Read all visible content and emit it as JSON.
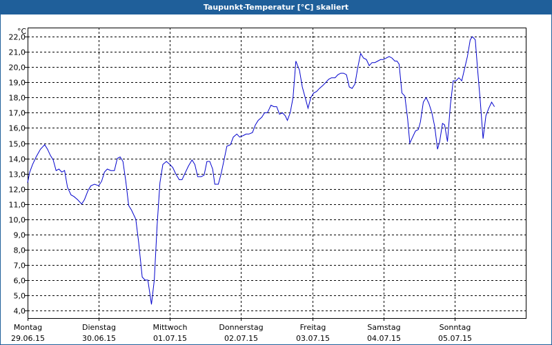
{
  "window": {
    "title": "Taupunkt-Temperatur [°C] skaliert"
  },
  "chart_data": {
    "type": "line",
    "title": "Taupunkt-Temperatur [°C] skaliert",
    "ylabel": "°C",
    "ylim": [
      3.5,
      22.6
    ],
    "yticks": [
      4,
      5,
      6,
      7,
      8,
      9,
      10,
      11,
      12,
      13,
      14,
      15,
      16,
      17,
      18,
      19,
      20,
      21,
      22
    ],
    "ytick_labels": [
      "4,0",
      "5,0",
      "6,0",
      "7,0",
      "8,0",
      "9,0",
      "10,0",
      "11,0",
      "12,0",
      "13,0",
      "14,0",
      "15,0",
      "16,0",
      "17,0",
      "18,0",
      "19,0",
      "20,0",
      "21,0",
      "22,0"
    ],
    "xlim": [
      0,
      7
    ],
    "days": [
      {
        "day": "Montag",
        "date": "29.06.15"
      },
      {
        "day": "Dienstag",
        "date": "30.06.15"
      },
      {
        "day": "Mittwoch",
        "date": "01.07.15"
      },
      {
        "day": "Donnerstag",
        "date": "02.07.15"
      },
      {
        "day": "Freitag",
        "date": "03.07.15"
      },
      {
        "day": "Samstag",
        "date": "04.07.15"
      },
      {
        "day": "Sonntag",
        "date": "05.07.15"
      }
    ],
    "grid": true,
    "line_color": "#0000cc",
    "series": [
      {
        "values": [
          [
            0.0,
            12.4
          ],
          [
            0.03,
            13.1
          ],
          [
            0.07,
            13.6
          ],
          [
            0.12,
            14.1
          ],
          [
            0.18,
            14.6
          ],
          [
            0.24,
            14.9
          ],
          [
            0.28,
            14.6
          ],
          [
            0.32,
            14.2
          ],
          [
            0.36,
            13.9
          ],
          [
            0.4,
            13.2
          ],
          [
            0.44,
            13.3
          ],
          [
            0.48,
            13.1
          ],
          [
            0.52,
            13.2
          ],
          [
            0.56,
            12.1
          ],
          [
            0.61,
            11.6
          ],
          [
            0.65,
            11.5
          ],
          [
            0.7,
            11.3
          ],
          [
            0.76,
            11.0
          ],
          [
            0.8,
            11.3
          ],
          [
            0.85,
            11.9
          ],
          [
            0.89,
            12.2
          ],
          [
            0.94,
            12.3
          ],
          [
            1.0,
            12.2
          ],
          [
            1.04,
            12.5
          ],
          [
            1.08,
            13.1
          ],
          [
            1.12,
            13.3
          ],
          [
            1.17,
            13.2
          ],
          [
            1.22,
            13.2
          ],
          [
            1.26,
            14.0
          ],
          [
            1.3,
            14.1
          ],
          [
            1.34,
            13.8
          ],
          [
            1.38,
            12.5
          ],
          [
            1.42,
            10.9
          ],
          [
            1.46,
            10.6
          ],
          [
            1.52,
            10.0
          ],
          [
            1.56,
            8.5
          ],
          [
            1.61,
            6.2
          ],
          [
            1.65,
            6.0
          ],
          [
            1.69,
            6.0
          ],
          [
            1.74,
            4.4
          ],
          [
            1.78,
            6.0
          ],
          [
            1.82,
            9.6
          ],
          [
            1.86,
            12.4
          ],
          [
            1.9,
            13.6
          ],
          [
            1.95,
            13.8
          ],
          [
            2.0,
            13.6
          ],
          [
            2.04,
            13.4
          ],
          [
            2.08,
            13.0
          ],
          [
            2.13,
            12.6
          ],
          [
            2.17,
            12.6
          ],
          [
            2.21,
            13.0
          ],
          [
            2.26,
            13.5
          ],
          [
            2.31,
            13.9
          ],
          [
            2.35,
            13.6
          ],
          [
            2.39,
            12.8
          ],
          [
            2.44,
            12.8
          ],
          [
            2.48,
            12.9
          ],
          [
            2.52,
            13.8
          ],
          [
            2.56,
            13.8
          ],
          [
            2.6,
            13.3
          ],
          [
            2.63,
            12.3
          ],
          [
            2.68,
            12.3
          ],
          [
            2.72,
            13.0
          ],
          [
            2.76,
            13.9
          ],
          [
            2.8,
            14.8
          ],
          [
            2.85,
            14.9
          ],
          [
            2.89,
            15.4
          ],
          [
            2.94,
            15.6
          ],
          [
            2.98,
            15.4
          ],
          [
            3.03,
            15.5
          ],
          [
            3.07,
            15.6
          ],
          [
            3.11,
            15.6
          ],
          [
            3.16,
            15.7
          ],
          [
            3.2,
            16.2
          ],
          [
            3.24,
            16.5
          ],
          [
            3.29,
            16.7
          ],
          [
            3.33,
            17.0
          ],
          [
            3.37,
            17.0
          ],
          [
            3.42,
            17.5
          ],
          [
            3.46,
            17.4
          ],
          [
            3.5,
            17.4
          ],
          [
            3.54,
            16.9
          ],
          [
            3.58,
            17.0
          ],
          [
            3.62,
            16.8
          ],
          [
            3.65,
            16.5
          ],
          [
            3.69,
            17.0
          ],
          [
            3.73,
            18.0
          ],
          [
            3.77,
            20.4
          ],
          [
            3.82,
            19.8
          ],
          [
            3.86,
            18.7
          ],
          [
            3.9,
            18.0
          ],
          [
            3.94,
            17.3
          ],
          [
            3.98,
            18.0
          ],
          [
            4.02,
            18.3
          ],
          [
            4.06,
            18.4
          ],
          [
            4.1,
            18.6
          ],
          [
            4.15,
            18.8
          ],
          [
            4.19,
            19.0
          ],
          [
            4.23,
            19.2
          ],
          [
            4.27,
            19.3
          ],
          [
            4.32,
            19.3
          ],
          [
            4.36,
            19.5
          ],
          [
            4.4,
            19.6
          ],
          [
            4.44,
            19.6
          ],
          [
            4.48,
            19.5
          ],
          [
            4.52,
            18.7
          ],
          [
            4.56,
            18.6
          ],
          [
            4.6,
            18.9
          ],
          [
            4.64,
            20.0
          ],
          [
            4.68,
            20.9
          ],
          [
            4.72,
            20.6
          ],
          [
            4.76,
            20.5
          ],
          [
            4.8,
            20.1
          ],
          [
            4.84,
            20.3
          ],
          [
            4.88,
            20.3
          ],
          [
            4.92,
            20.4
          ],
          [
            4.96,
            20.5
          ],
          [
            5.0,
            20.5
          ],
          [
            5.04,
            20.6
          ],
          [
            5.08,
            20.7
          ],
          [
            5.12,
            20.6
          ],
          [
            5.16,
            20.4
          ],
          [
            5.19,
            20.4
          ],
          [
            5.22,
            20.2
          ],
          [
            5.26,
            18.3
          ],
          [
            5.3,
            18.1
          ],
          [
            5.34,
            16.6
          ],
          [
            5.37,
            15.0
          ],
          [
            5.41,
            15.4
          ],
          [
            5.45,
            15.8
          ],
          [
            5.49,
            15.9
          ],
          [
            5.52,
            16.4
          ],
          [
            5.56,
            17.7
          ],
          [
            5.6,
            18.0
          ],
          [
            5.64,
            17.6
          ],
          [
            5.68,
            17.0
          ],
          [
            5.72,
            16.1
          ],
          [
            5.76,
            14.6
          ],
          [
            5.79,
            15.1
          ],
          [
            5.83,
            16.3
          ],
          [
            5.86,
            16.2
          ],
          [
            5.9,
            15.1
          ],
          [
            5.94,
            17.5
          ],
          [
            5.98,
            19.1
          ],
          [
            6.02,
            19.1
          ],
          [
            6.06,
            19.3
          ],
          [
            6.1,
            19.1
          ],
          [
            6.14,
            19.9
          ],
          [
            6.18,
            20.7
          ],
          [
            6.22,
            21.8
          ],
          [
            6.25,
            22.0
          ],
          [
            6.29,
            21.8
          ],
          [
            6.32,
            20.0
          ],
          [
            6.36,
            17.8
          ],
          [
            6.4,
            15.3
          ],
          [
            6.44,
            16.8
          ],
          [
            6.48,
            17.3
          ],
          [
            6.52,
            17.7
          ],
          [
            6.56,
            17.4
          ]
        ]
      }
    ]
  }
}
